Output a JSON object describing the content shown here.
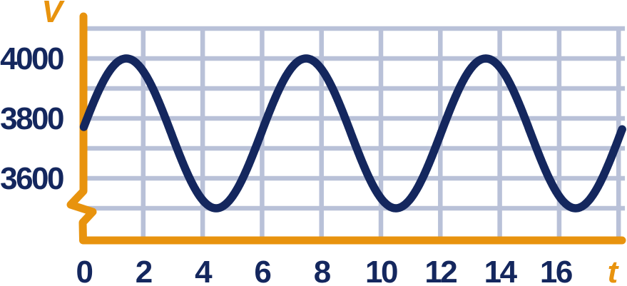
{
  "page": {
    "background": "#FFFFFF",
    "description": "Graph of a sinusoidal voltage V versus time t on a light-blue grid; orange axes with a break symbol on the V axis"
  },
  "colors": {
    "axis_orange": "#E8930E",
    "curve_navy": "#14275E",
    "grid_blue": "#B9C1D8",
    "tick_text_navy": "#14275E"
  },
  "axes": {
    "y_label": "V",
    "x_label": "t",
    "y_tick_labels": [
      "4000",
      "3800",
      "3600"
    ],
    "x_tick_labels": [
      "0",
      "2",
      "4",
      "6",
      "8",
      "10",
      "12",
      "14",
      "16"
    ],
    "y_axis_break": true
  },
  "chart_data": {
    "type": "line",
    "shape": "sinusoid",
    "title": "",
    "xlabel": "t",
    "ylabel": "V",
    "x_ticks": [
      0,
      2,
      4,
      6,
      8,
      10,
      12,
      14,
      16
    ],
    "y_ticks": [
      4000,
      3800,
      3600
    ],
    "y_gridlines": [
      4100,
      4000,
      3900,
      3800,
      3700,
      3600,
      3500
    ],
    "x_gridlines": [
      2,
      4,
      6,
      8,
      10,
      12,
      14,
      16,
      18
    ],
    "grid": true,
    "legend": false,
    "axis_break": {
      "axis": "y",
      "meaning": "V scale is broken; it does not start at 0"
    },
    "signal": {
      "midline": 3750,
      "amplitude": 250,
      "period": 6.05,
      "peak_t": 1.43,
      "max": 4000,
      "min": 3500,
      "t_domain": [
        0,
        18.12
      ]
    },
    "series": [
      {
        "name": "V(t)",
        "t": [
          0,
          1,
          2,
          3,
          4,
          5,
          6,
          7,
          8,
          9,
          10,
          11,
          12,
          13,
          14,
          15,
          16,
          17,
          18
        ],
        "V": [
          3771,
          3976,
          3957,
          3735,
          3528,
          3539,
          3758,
          3969,
          3964,
          3748,
          3533,
          3532,
          3745,
          3963,
          3970,
          3761,
          3540,
          3527,
          3733
        ]
      }
    ]
  }
}
